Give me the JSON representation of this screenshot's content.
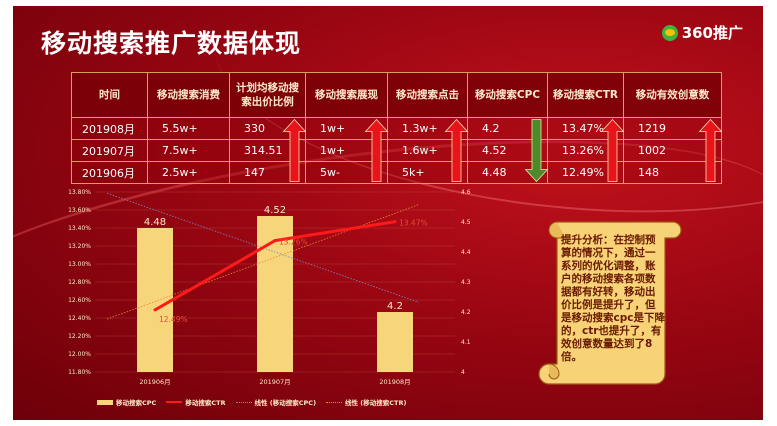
{
  "title": "移动搜索推广数据体现",
  "logo_text": "360推广",
  "table": {
    "headers": [
      "时间",
      "移动搜索消费",
      "计划均移动搜索出价比例",
      "移动搜索展现",
      "移动搜索点击",
      "移动搜索CPC",
      "移动搜索CTR",
      "移动有效创意数"
    ],
    "rows": [
      [
        "201908月",
        "5.5w+",
        "330",
        "1w+",
        "1.3w+",
        "4.2",
        "13.47%",
        "1219"
      ],
      [
        "201907月",
        "7.5w+",
        "314.51",
        "1w+",
        "1.6w+",
        "4.52",
        "13.26%",
        "1002"
      ],
      [
        "201906月",
        "2.5w+",
        "147",
        "5w-",
        "5k+",
        "4.48",
        "12.49%",
        "148"
      ]
    ],
    "trend_arrows": [
      {
        "column": "计划均移动搜索出价比例",
        "direction": "up",
        "color": "#e8131b"
      },
      {
        "column": "移动搜索展现",
        "direction": "up",
        "color": "#e8131b"
      },
      {
        "column": "移动搜索点击",
        "direction": "up",
        "color": "#e8131b"
      },
      {
        "column": "移动搜索CPC",
        "direction": "down",
        "color": "#4e8a2a"
      },
      {
        "column": "移动搜索CTR",
        "direction": "up",
        "color": "#e8131b"
      },
      {
        "column": "移动有效创意数",
        "direction": "up",
        "color": "#e8131b"
      }
    ]
  },
  "analysis": "提升分析：在控制预算的情况下，通过一系列的优化调整，账户的移动搜索各项数据都有好转，移动出价比例是提升了，但是移动搜索cpc是下降的，ctr也提升了，有效创意数量达到了8倍。",
  "chart_data": {
    "type": "bar",
    "categories": [
      "201906月",
      "201907月",
      "201908月"
    ],
    "series": [
      {
        "name": "移动搜索CPC",
        "type": "bar",
        "axis": "right",
        "values": [
          4.48,
          4.52,
          4.2
        ],
        "labels": [
          "4.48",
          "4.52",
          "4.2"
        ],
        "color": "#f6d57b"
      },
      {
        "name": "移动搜索CTR",
        "type": "line",
        "axis": "left",
        "values": [
          12.49,
          13.26,
          13.47
        ],
        "labels": [
          "12.49%",
          "13.26%",
          "13.47%"
        ],
        "color": "#ff1a1a"
      }
    ],
    "trendlines": [
      {
        "name": "线性 (移动搜索CPC)",
        "axis": "right",
        "color": "#7d86c8"
      },
      {
        "name": "线性 (移动搜索CTR)",
        "axis": "left",
        "color": "#e08a3a"
      }
    ],
    "y_left": {
      "min": 11.8,
      "max": 13.8,
      "step": 0.2,
      "ticks": [
        "11.80%",
        "12.00%",
        "12.20%",
        "12.40%",
        "12.60%",
        "12.80%",
        "13.00%",
        "13.20%",
        "13.40%",
        "13.60%",
        "13.80%"
      ]
    },
    "y_right": {
      "min": 4,
      "max": 4.6,
      "step": 0.1,
      "ticks": [
        "4",
        "4.1",
        "4.2",
        "4.3",
        "4.4",
        "4.5",
        "4.6"
      ]
    },
    "legend_position": "bottom"
  }
}
